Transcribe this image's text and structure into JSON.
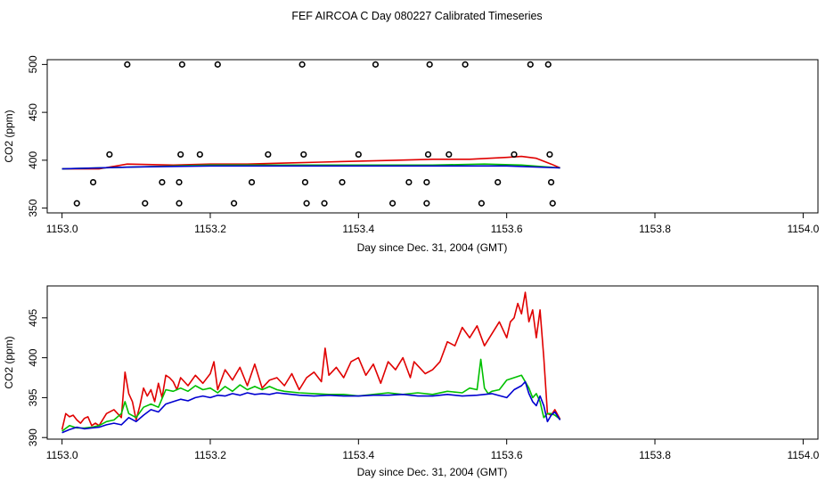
{
  "figure_title": "FEF AIRCOA C  Day 080227  Calibrated Timeseries",
  "colors": {
    "red": "#e00000",
    "green": "#00c000",
    "blue": "#0000d0",
    "axis": "#000000"
  },
  "chart_data": [
    {
      "type": "scatter+line",
      "panel": "top",
      "xlabel": "Day since Dec. 31, 2004 (GMT)",
      "ylabel": "CO2 (ppm)",
      "xlim": [
        1152.98,
        1154.02
      ],
      "ylim": [
        345,
        505
      ],
      "xticks": [
        1153.0,
        1153.2,
        1153.4,
        1153.6,
        1153.8,
        1154.0
      ],
      "xtick_labels": [
        "1153.0",
        "1153.2",
        "1153.4",
        "1153.6",
        "1153.8",
        "1154.0"
      ],
      "yticks": [
        350,
        400,
        450,
        500
      ],
      "ytick_labels": [
        "350",
        "400",
        "450",
        "500"
      ],
      "markers": {
        "name": "calibration points",
        "style": "open-circle",
        "points": [
          [
            1153.088,
            500
          ],
          [
            1153.162,
            500
          ],
          [
            1153.21,
            500
          ],
          [
            1153.324,
            500
          ],
          [
            1153.423,
            500
          ],
          [
            1153.496,
            500
          ],
          [
            1153.544,
            500
          ],
          [
            1153.632,
            500
          ],
          [
            1153.656,
            500
          ],
          [
            1153.064,
            406
          ],
          [
            1153.16,
            406
          ],
          [
            1153.186,
            406
          ],
          [
            1153.278,
            406
          ],
          [
            1153.326,
            406
          ],
          [
            1153.4,
            406
          ],
          [
            1153.494,
            406
          ],
          [
            1153.522,
            406
          ],
          [
            1153.61,
            406
          ],
          [
            1153.658,
            406
          ],
          [
            1153.042,
            377
          ],
          [
            1153.135,
            377
          ],
          [
            1153.158,
            377
          ],
          [
            1153.256,
            377
          ],
          [
            1153.328,
            377
          ],
          [
            1153.378,
            377
          ],
          [
            1153.468,
            377
          ],
          [
            1153.492,
            377
          ],
          [
            1153.588,
            377
          ],
          [
            1153.66,
            377
          ],
          [
            1153.02,
            355
          ],
          [
            1153.112,
            355
          ],
          [
            1153.158,
            355
          ],
          [
            1153.232,
            355
          ],
          [
            1153.33,
            355
          ],
          [
            1153.354,
            355
          ],
          [
            1153.446,
            355
          ],
          [
            1153.492,
            355
          ],
          [
            1153.566,
            355
          ],
          [
            1153.662,
            355
          ]
        ]
      },
      "series": [
        {
          "name": "red",
          "color": "red",
          "x": [
            1153.0,
            1153.05,
            1153.088,
            1153.15,
            1153.2,
            1153.25,
            1153.3,
            1153.35,
            1153.4,
            1153.45,
            1153.5,
            1153.55,
            1153.6,
            1153.62,
            1153.64,
            1153.66,
            1153.672
          ],
          "y": [
            391,
            391,
            396,
            395,
            396,
            396,
            397,
            398,
            399,
            400,
            401,
            401,
            403,
            404,
            402,
            396,
            392
          ]
        },
        {
          "name": "green",
          "color": "green",
          "x": [
            1153.0,
            1153.1,
            1153.2,
            1153.3,
            1153.4,
            1153.5,
            1153.57,
            1153.62,
            1153.672
          ],
          "y": [
            391,
            393,
            395,
            395,
            395,
            395,
            396,
            395,
            392
          ]
        },
        {
          "name": "blue",
          "color": "blue",
          "x": [
            1153.0,
            1153.1,
            1153.2,
            1153.3,
            1153.4,
            1153.5,
            1153.6,
            1153.672
          ],
          "y": [
            391,
            393,
            394,
            394,
            394,
            394,
            394,
            392
          ]
        }
      ]
    },
    {
      "type": "line",
      "panel": "bottom",
      "xlabel": "Day since Dec. 31, 2004 (GMT)",
      "ylabel": "CO2 (ppm)",
      "xlim": [
        1152.98,
        1154.02
      ],
      "ylim": [
        389.8,
        409.0
      ],
      "xticks": [
        1153.0,
        1153.2,
        1153.4,
        1153.6,
        1153.8,
        1154.0
      ],
      "xtick_labels": [
        "1153.0",
        "1153.2",
        "1153.4",
        "1153.6",
        "1153.8",
        "1154.0"
      ],
      "yticks": [
        390,
        395,
        400,
        405
      ],
      "ytick_labels": [
        "390",
        "395",
        "400",
        "405"
      ],
      "series": [
        {
          "name": "red",
          "color": "red",
          "x": [
            1153.0,
            1153.005,
            1153.01,
            1153.015,
            1153.02,
            1153.025,
            1153.03,
            1153.035,
            1153.04,
            1153.045,
            1153.05,
            1153.06,
            1153.07,
            1153.08,
            1153.085,
            1153.09,
            1153.095,
            1153.1,
            1153.105,
            1153.11,
            1153.115,
            1153.12,
            1153.125,
            1153.13,
            1153.135,
            1153.14,
            1153.145,
            1153.15,
            1153.155,
            1153.16,
            1153.17,
            1153.18,
            1153.19,
            1153.2,
            1153.205,
            1153.21,
            1153.22,
            1153.23,
            1153.24,
            1153.25,
            1153.26,
            1153.27,
            1153.28,
            1153.29,
            1153.3,
            1153.31,
            1153.32,
            1153.33,
            1153.34,
            1153.35,
            1153.355,
            1153.36,
            1153.37,
            1153.38,
            1153.39,
            1153.4,
            1153.41,
            1153.42,
            1153.43,
            1153.44,
            1153.45,
            1153.46,
            1153.47,
            1153.475,
            1153.48,
            1153.49,
            1153.5,
            1153.51,
            1153.52,
            1153.53,
            1153.54,
            1153.55,
            1153.56,
            1153.57,
            1153.58,
            1153.59,
            1153.6,
            1153.605,
            1153.61,
            1153.615,
            1153.62,
            1153.625,
            1153.63,
            1153.635,
            1153.64,
            1153.645,
            1153.65,
            1153.655,
            1153.66,
            1153.665,
            1153.672
          ],
          "y": [
            391.0,
            393.0,
            392.6,
            392.8,
            392.2,
            391.8,
            392.4,
            392.6,
            391.5,
            391.8,
            391.5,
            393.0,
            393.5,
            392.5,
            398.2,
            395.5,
            394.5,
            392.2,
            394.0,
            396.2,
            395.2,
            396.0,
            394.5,
            396.8,
            395.0,
            397.8,
            397.5,
            397.0,
            396.0,
            397.5,
            396.5,
            397.8,
            396.8,
            398.0,
            399.5,
            396.0,
            398.5,
            397.2,
            398.8,
            396.5,
            399.2,
            396.2,
            397.2,
            397.5,
            396.5,
            398.0,
            396.0,
            397.5,
            398.2,
            397.0,
            401.2,
            397.8,
            398.8,
            397.5,
            399.5,
            400.0,
            397.8,
            399.2,
            396.8,
            399.5,
            398.5,
            400.0,
            397.5,
            399.5,
            399.0,
            398.0,
            398.5,
            399.5,
            402.0,
            401.5,
            403.8,
            402.5,
            404.0,
            401.5,
            403.0,
            404.5,
            402.5,
            404.5,
            405.0,
            406.8,
            405.5,
            408.2,
            404.5,
            406.0,
            402.5,
            406.0,
            400.0,
            393.0,
            392.8,
            393.5,
            392.3
          ]
        },
        {
          "name": "green",
          "color": "green",
          "x": [
            1153.0,
            1153.01,
            1153.02,
            1153.03,
            1153.04,
            1153.05,
            1153.06,
            1153.07,
            1153.08,
            1153.085,
            1153.09,
            1153.1,
            1153.11,
            1153.12,
            1153.13,
            1153.14,
            1153.15,
            1153.16,
            1153.17,
            1153.18,
            1153.19,
            1153.2,
            1153.21,
            1153.22,
            1153.23,
            1153.24,
            1153.25,
            1153.26,
            1153.27,
            1153.28,
            1153.29,
            1153.3,
            1153.32,
            1153.34,
            1153.36,
            1153.38,
            1153.4,
            1153.42,
            1153.44,
            1153.46,
            1153.48,
            1153.5,
            1153.52,
            1153.54,
            1153.55,
            1153.56,
            1153.565,
            1153.57,
            1153.575,
            1153.58,
            1153.59,
            1153.6,
            1153.61,
            1153.62,
            1153.63,
            1153.635,
            1153.64,
            1153.645,
            1153.65,
            1153.655,
            1153.66,
            1153.665,
            1153.672
          ],
          "y": [
            390.8,
            391.5,
            391.2,
            391.2,
            391.3,
            391.5,
            392.0,
            392.2,
            393.0,
            394.5,
            393.0,
            392.5,
            393.8,
            394.2,
            393.8,
            396.0,
            395.8,
            396.2,
            395.8,
            396.5,
            396.0,
            396.2,
            395.6,
            396.4,
            395.8,
            396.6,
            396.0,
            396.4,
            396.0,
            396.4,
            396.0,
            395.8,
            395.6,
            395.5,
            395.4,
            395.4,
            395.2,
            395.4,
            395.6,
            395.4,
            395.6,
            395.4,
            395.8,
            395.6,
            396.2,
            396.0,
            399.8,
            396.2,
            395.5,
            395.8,
            396.0,
            397.2,
            397.5,
            397.8,
            396.2,
            395.0,
            395.5,
            394.5,
            392.5,
            393.0,
            393.0,
            392.8,
            392.3
          ]
        },
        {
          "name": "blue",
          "color": "blue",
          "x": [
            1153.0,
            1153.01,
            1153.02,
            1153.03,
            1153.04,
            1153.05,
            1153.06,
            1153.07,
            1153.08,
            1153.09,
            1153.1,
            1153.11,
            1153.12,
            1153.13,
            1153.14,
            1153.15,
            1153.16,
            1153.17,
            1153.18,
            1153.19,
            1153.2,
            1153.21,
            1153.22,
            1153.23,
            1153.24,
            1153.25,
            1153.26,
            1153.27,
            1153.28,
            1153.29,
            1153.3,
            1153.32,
            1153.34,
            1153.36,
            1153.38,
            1153.4,
            1153.42,
            1153.44,
            1153.46,
            1153.48,
            1153.5,
            1153.52,
            1153.54,
            1153.56,
            1153.58,
            1153.6,
            1153.61,
            1153.62,
            1153.625,
            1153.63,
            1153.635,
            1153.64,
            1153.645,
            1153.65,
            1153.655,
            1153.66,
            1153.665,
            1153.672
          ],
          "y": [
            390.6,
            391.0,
            391.3,
            391.1,
            391.2,
            391.3,
            391.6,
            391.8,
            391.6,
            392.5,
            392.0,
            392.8,
            393.5,
            393.2,
            394.2,
            394.5,
            394.8,
            394.6,
            395.0,
            395.2,
            395.0,
            395.3,
            395.2,
            395.5,
            395.3,
            395.6,
            395.4,
            395.5,
            395.4,
            395.6,
            395.5,
            395.3,
            395.2,
            395.3,
            395.2,
            395.2,
            395.3,
            395.3,
            395.4,
            395.2,
            395.2,
            395.4,
            395.2,
            395.3,
            395.5,
            395.0,
            396.0,
            396.5,
            397.0,
            395.5,
            394.5,
            394.0,
            395.2,
            394.0,
            392.0,
            392.8,
            393.2,
            392.2
          ]
        }
      ]
    }
  ]
}
